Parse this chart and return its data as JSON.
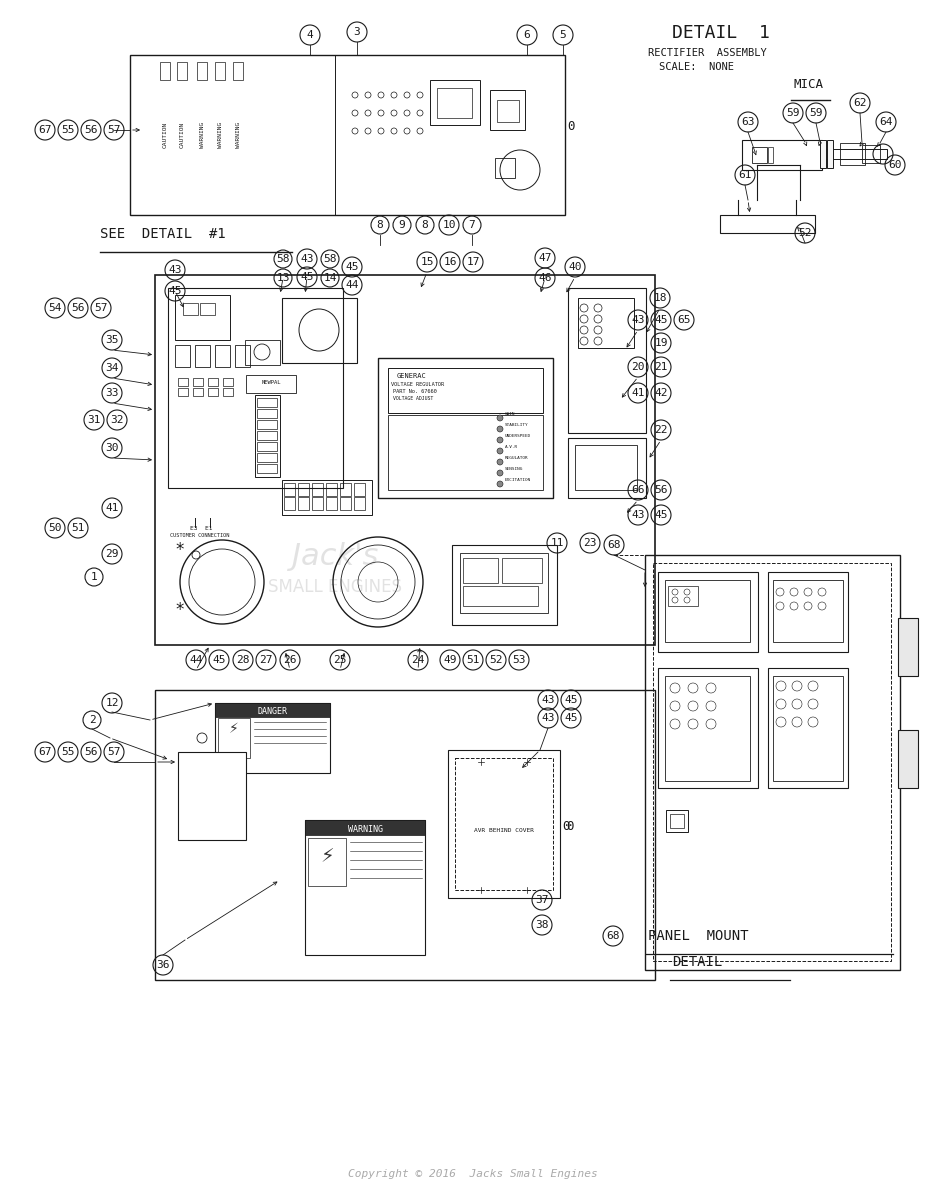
{
  "bg_color": "#ffffff",
  "lc": "#1a1a1a",
  "copyright": "Copyright © 2016  Jacks Small Engines",
  "detail1_title": "DETAIL  1",
  "detail1_sub1": "RECTIFIER  ASSEMBLY",
  "detail1_sub2": "SCALE:  NONE",
  "mica_label": "MICA",
  "see_detail": "SEE  DETAIL  #1",
  "watermark1": "Jack's",
  "watermark2": "SMALL ENGINES",
  "panel_mount1": "PANEL  MOUNT",
  "panel_mount2": "DETAIL",
  "generac_label": "GENERAC",
  "vr_label": "VOLTAGE REGULATOR",
  "vr_part": "PART No. 67660",
  "voltage_adj": "VOLTAGE ADJUST",
  "cust_conn": "CUSTOMER CONNECTION",
  "e3e1": "E3  E1",
  "avr_label": "AVR BEHIND COVER",
  "caution1": "CAUTION",
  "caution2": "CAUTION",
  "warning1": "WARNING",
  "warning2": "WARNING",
  "warning3": "WARNING",
  "danger_lbl": "DANGER",
  "warning_lbl": "WARNING"
}
